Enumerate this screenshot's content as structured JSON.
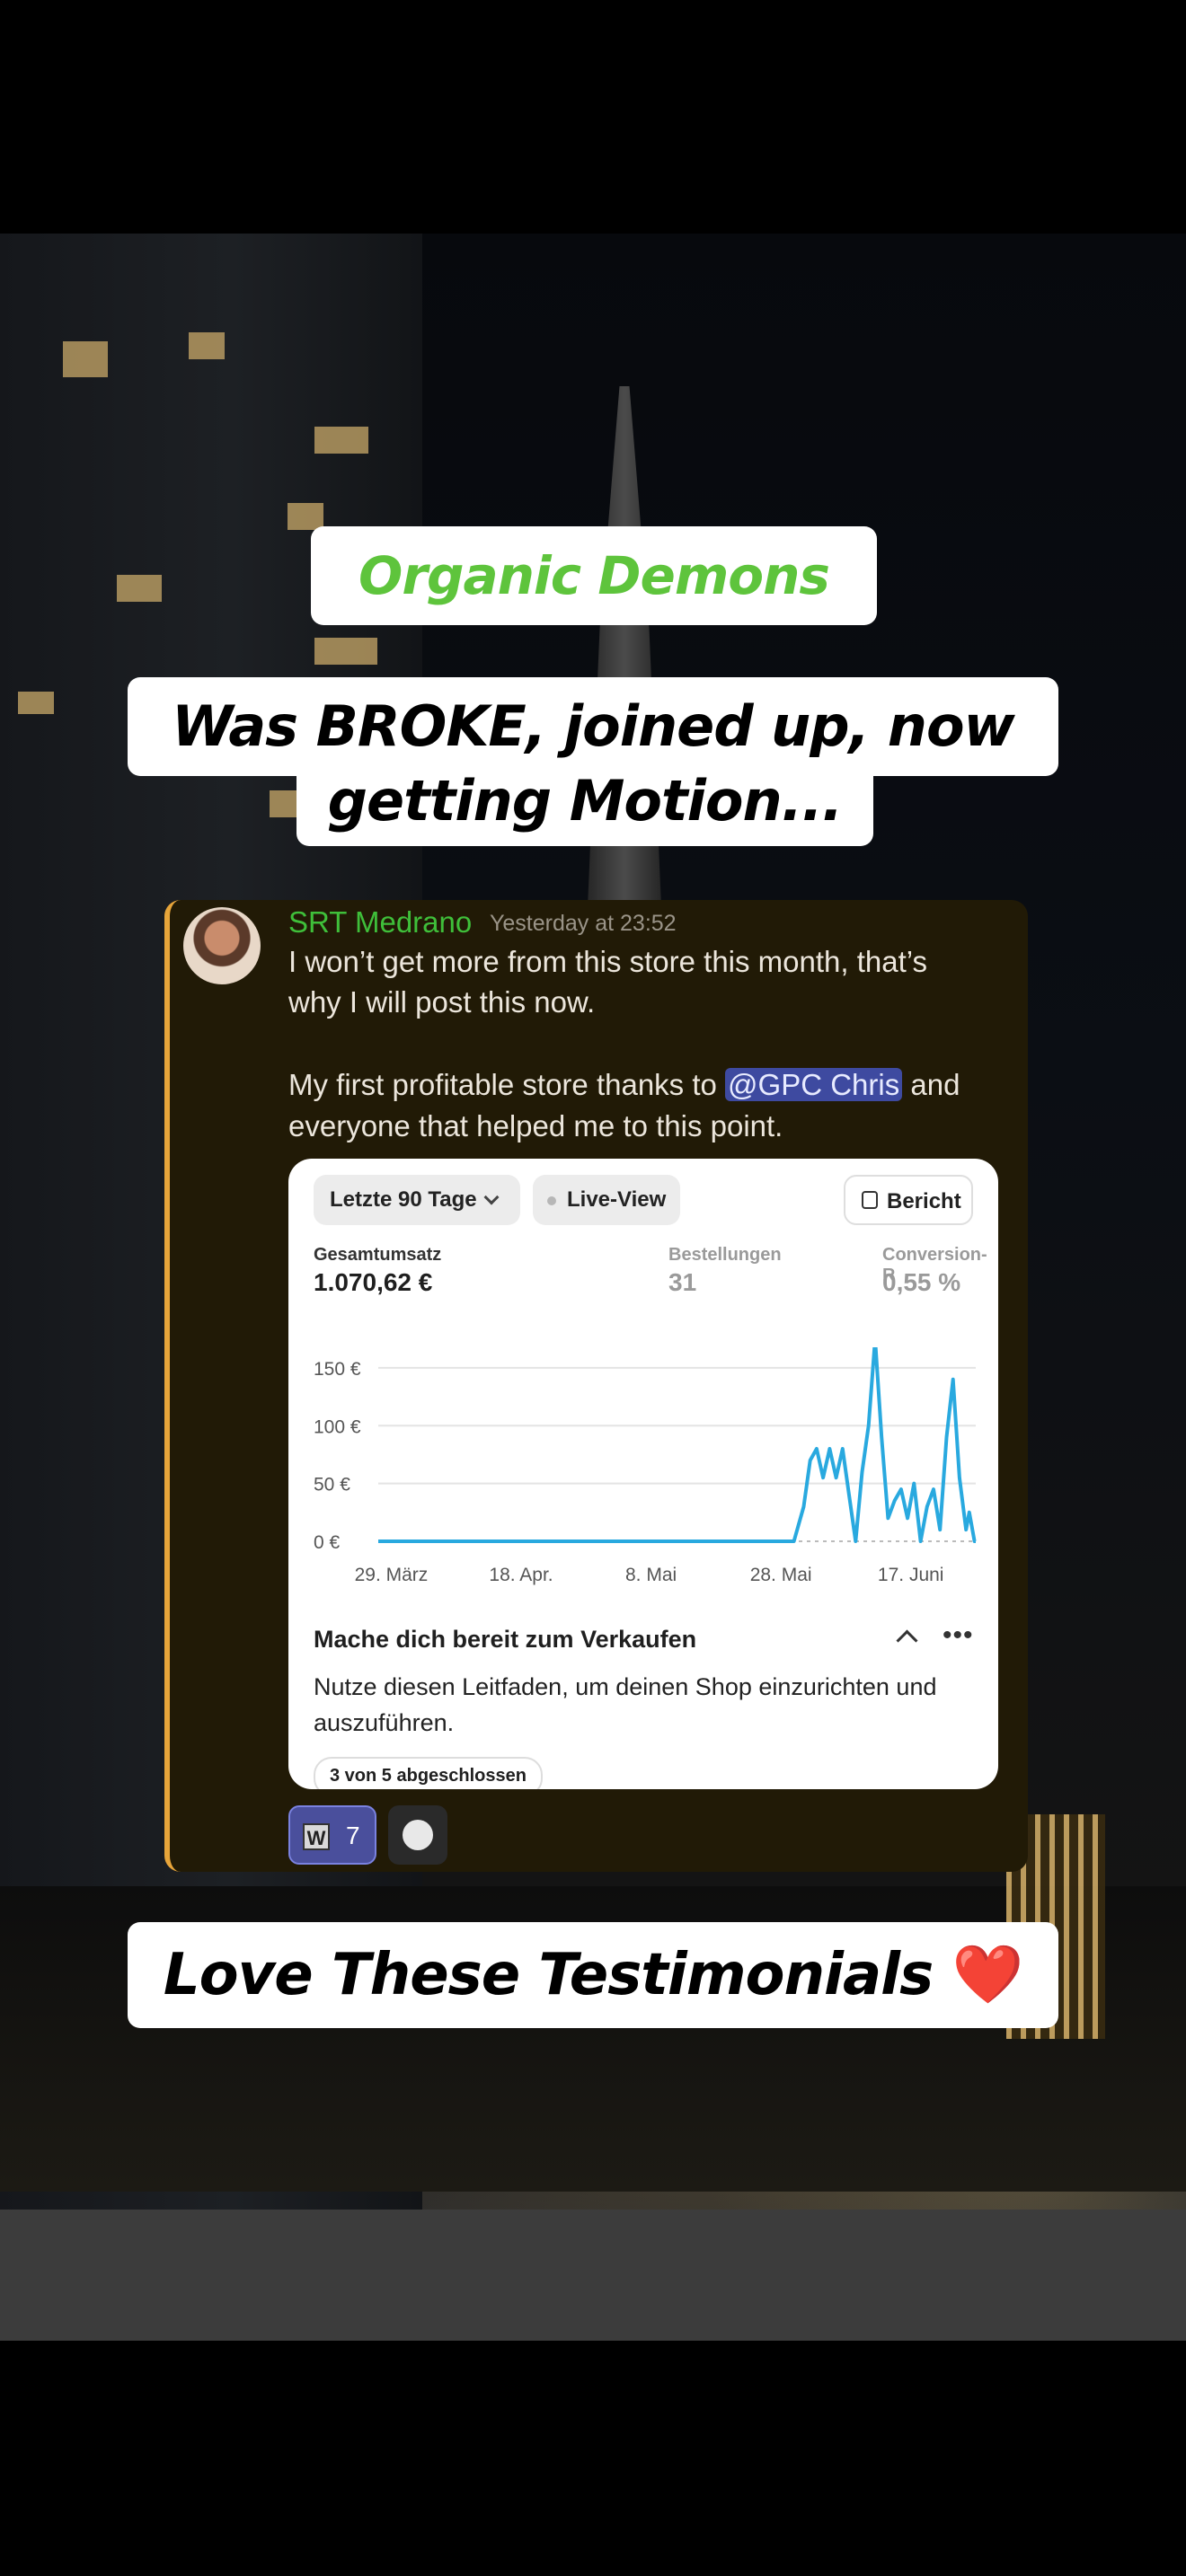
{
  "captions": {
    "brand": "Organic Demons",
    "headline_line1": "Was BROKE, joined up, now",
    "headline_line2": "getting Motion...",
    "footer": "Love These Testimonials",
    "footer_emoji": "❤️"
  },
  "post": {
    "username": "SRT Medrano",
    "timestamp": "Yesterday at 23:52",
    "line1": "I won’t get more from this store this month, that’s",
    "line2": "why I will post this now.",
    "line3_before": "My first profitable store thanks to ",
    "mention": "@GPC Chris",
    "line3_after": " and",
    "line4": "everyone that helped me to this point.",
    "reactions": {
      "count": "7",
      "emoji_label": "W"
    }
  },
  "card": {
    "range_label": "Letzte 90 Tage",
    "live_label": "Live-View",
    "report_label": "Bericht",
    "metrics": [
      {
        "label": "Gesamtumsatz",
        "value": "1.070,62 €"
      },
      {
        "label": "Bestellungen",
        "value": "31"
      },
      {
        "label": "Conversion-R",
        "value": "0,55 %"
      }
    ],
    "section_title": "Mache dich bereit zum Verkaufen",
    "section_body": "Nutze diesen Leitfaden, um deinen Shop einzurichten und auszuführen.",
    "progress_label": "3 von 5 abgeschlossen"
  },
  "chart_data": {
    "type": "line",
    "title": "",
    "xlabel": "",
    "ylabel": "",
    "ylim": [
      0,
      160
    ],
    "y_ticks": [
      "150 €",
      "100 €",
      "50 €",
      "0 €"
    ],
    "y_tick_values": [
      150,
      100,
      50,
      0
    ],
    "x_ticks": [
      "29. März",
      "18. Apr.",
      "8. Mai",
      "28. Mai",
      "17. Juni"
    ],
    "x_tick_positions": [
      2,
      22,
      42,
      62,
      82
    ],
    "x_range": [
      0,
      92
    ],
    "series": [
      {
        "name": "Gesamtumsatz",
        "color": "#29a9df",
        "points": [
          [
            0,
            0
          ],
          [
            64,
            0
          ],
          [
            65.5,
            30
          ],
          [
            66.5,
            70
          ],
          [
            67.5,
            80
          ],
          [
            68.5,
            55
          ],
          [
            69.5,
            80
          ],
          [
            70.5,
            55
          ],
          [
            71.5,
            80
          ],
          [
            72.5,
            40
          ],
          [
            73.5,
            0
          ],
          [
            74.5,
            60
          ],
          [
            75.5,
            100
          ],
          [
            76.5,
            175
          ],
          [
            77.5,
            90
          ],
          [
            78.5,
            20
          ],
          [
            79.5,
            35
          ],
          [
            80.5,
            45
          ],
          [
            81.5,
            20
          ],
          [
            82.5,
            50
          ],
          [
            83.5,
            0
          ],
          [
            84.5,
            30
          ],
          [
            85.5,
            45
          ],
          [
            86.5,
            10
          ],
          [
            87.5,
            90
          ],
          [
            88.5,
            140
          ],
          [
            89.5,
            55
          ],
          [
            90.5,
            10
          ],
          [
            91,
            25
          ],
          [
            91.8,
            0
          ],
          [
            92,
            0
          ]
        ]
      }
    ]
  }
}
